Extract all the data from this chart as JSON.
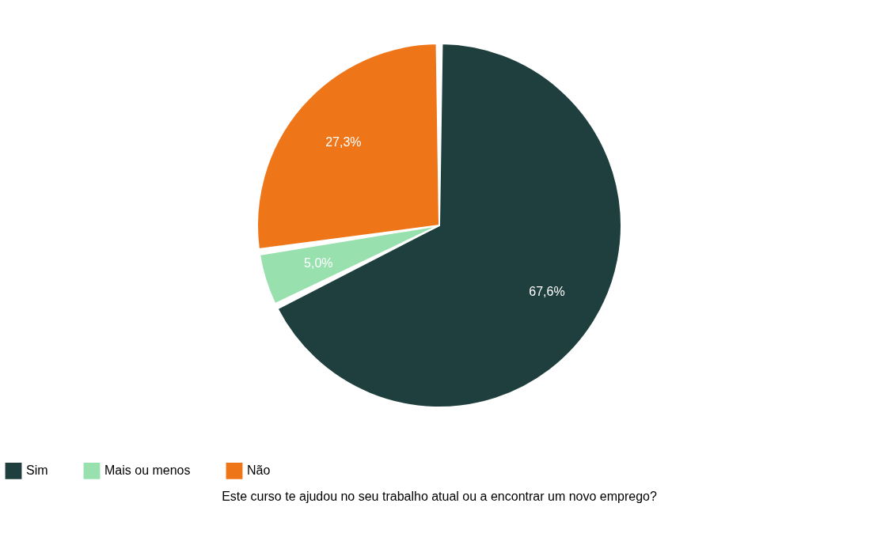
{
  "chart_data": {
    "type": "pie",
    "title": "Este curso te ajudou no seu trabalho atual ou a encontrar um novo emprego?",
    "categories": [
      "Sim",
      "Mais ou menos",
      "Não"
    ],
    "values": [
      67.6,
      5.0,
      27.3
    ],
    "value_labels": [
      "67,6%",
      "5,0%",
      "27,3%"
    ],
    "colors": [
      "#1e3f3d",
      "#98e0ae",
      "#ef7519"
    ],
    "legend": "bottom"
  }
}
